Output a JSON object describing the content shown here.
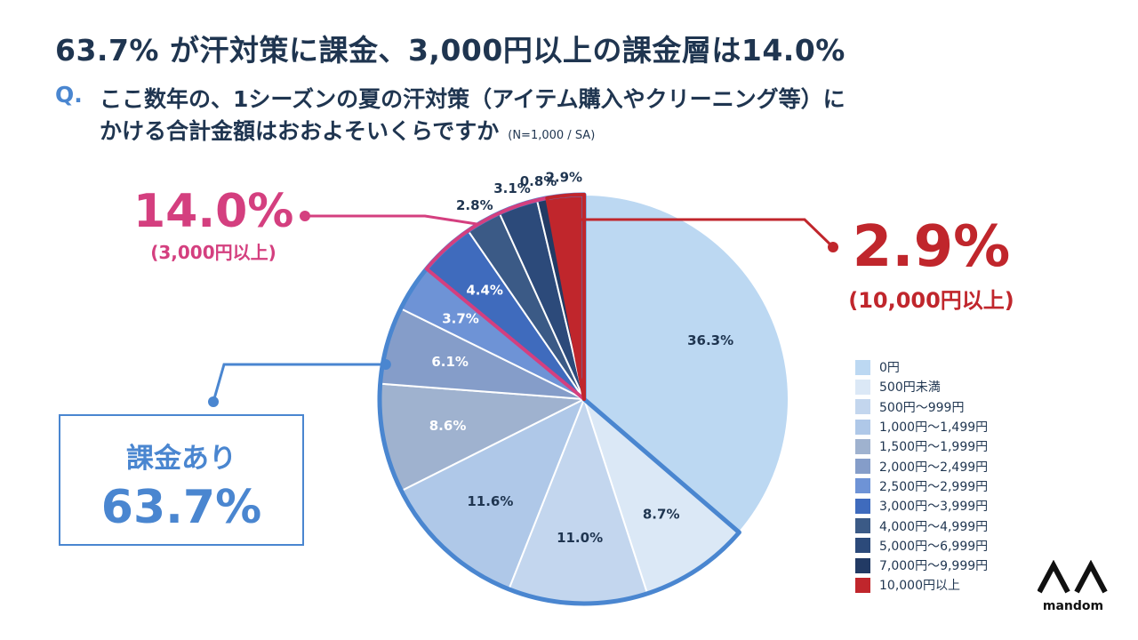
{
  "title": "63.7% が汗対策に課金、3,000円以上の課金層は14.0%",
  "question": {
    "mark": "Q.",
    "line1": "ここ数年の、1シーズンの夏の汗対策（アイテム購入やクリーニング等）に",
    "line2": "かける合計金額はおおよそいくらですか",
    "note": "(N=1,000 / SA)"
  },
  "callouts": {
    "high_pct": "14.0%",
    "high_label": "(3,000円以上)",
    "top_pct": "2.9%",
    "top_label": "(10,000円以上)",
    "paid_label": "課金あり",
    "paid_pct": "63.7%"
  },
  "colors": {
    "paid_outline": "#4a86d0",
    "high_outline": "#d43f7f",
    "top_outline": "#c0262c"
  },
  "chart_data": {
    "type": "pie",
    "title": "63.7% が汗対策に課金、3,000円以上の課金層は14.0%",
    "start_angle_deg": 0,
    "direction": "clockwise",
    "slices": [
      {
        "label": "0円",
        "value": 36.3,
        "display": "36.3%",
        "color": "#bcd8f2"
      },
      {
        "label": "500円未満",
        "value": 8.7,
        "display": "8.7%",
        "color": "#dbe8f6"
      },
      {
        "label": "500円〜999円",
        "value": 11.0,
        "display": "11.0%",
        "color": "#c3d6ee"
      },
      {
        "label": "1,000円〜1,499円",
        "value": 11.6,
        "display": "11.6%",
        "color": "#afc8e8"
      },
      {
        "label": "1,500円〜1,999円",
        "value": 8.6,
        "display": "8.6%",
        "color": "#9fb2cf"
      },
      {
        "label": "2,000円〜2,499円",
        "value": 6.1,
        "display": "6.1%",
        "color": "#859dc9"
      },
      {
        "label": "2,500円〜2,999円",
        "value": 3.7,
        "display": "3.7%",
        "color": "#6e93d6"
      },
      {
        "label": "3,000円〜3,999円",
        "value": 4.4,
        "display": "4.4%",
        "color": "#3f6bbd"
      },
      {
        "label": "4,000円〜4,999円",
        "value": 2.8,
        "display": "2.8%",
        "color": "#3b5a86"
      },
      {
        "label": "5,000円〜6,999円",
        "value": 3.1,
        "display": "3.1%",
        "color": "#2c4a7a"
      },
      {
        "label": "7,000円〜9,999円",
        "value": 0.8,
        "display": "0.8%",
        "color": "#223a64"
      },
      {
        "label": "10,000円以上",
        "value": 2.9,
        "display": "2.9%",
        "color": "#c0262c"
      }
    ]
  },
  "logo": {
    "text": "mandom"
  }
}
